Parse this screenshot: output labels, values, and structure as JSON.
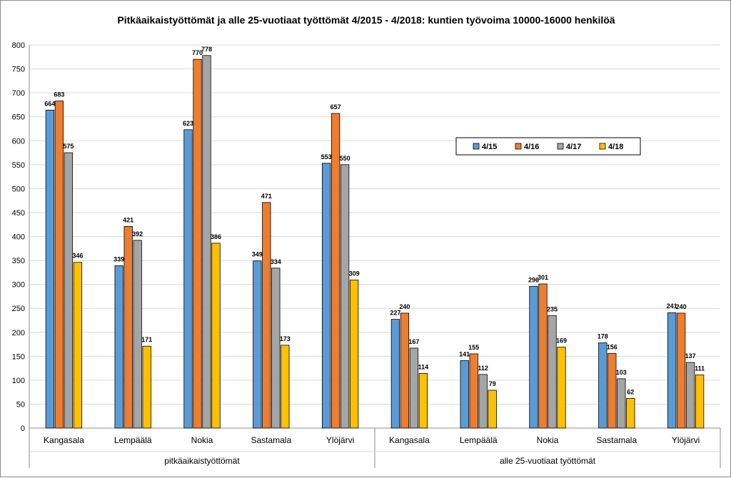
{
  "chart_data": {
    "type": "bar",
    "title": "Pitkäaikaistyöttömät ja alle 25-vuotiaat työttömät 4/2015 - 4/2018: kuntien työvoima 10000-16000 henkilöä",
    "ylim": [
      0,
      800
    ],
    "yticks": [
      0,
      50,
      100,
      150,
      200,
      250,
      300,
      350,
      400,
      450,
      500,
      550,
      600,
      650,
      700,
      750,
      800
    ],
    "grid": true,
    "legend_position": "right",
    "groups": [
      {
        "label": "pitkäaikaistyöttömät",
        "categories": [
          "Kangasala",
          "Lempäälä",
          "Nokia",
          "Sastamala",
          "Ylöjärvi"
        ]
      },
      {
        "label": "alle 25-vuotiaat työttömät",
        "categories": [
          "Kangasala",
          "Lempäälä",
          "Nokia",
          "Sastamala",
          "Ylöjärvi"
        ]
      }
    ],
    "series": [
      {
        "name": "4/15",
        "color": "#5b9bd5",
        "values": [
          664,
          339,
          623,
          349,
          553,
          227,
          141,
          296,
          178,
          241
        ]
      },
      {
        "name": "4/16",
        "color": "#ed7d31",
        "values": [
          683,
          421,
          770,
          471,
          657,
          240,
          155,
          301,
          156,
          240
        ]
      },
      {
        "name": "4/17",
        "color": "#a5a5a5",
        "values": [
          575,
          392,
          778,
          334,
          550,
          167,
          112,
          235,
          103,
          137
        ]
      },
      {
        "name": "4/18",
        "color": "#ffc000",
        "values": [
          346,
          171,
          386,
          173,
          309,
          114,
          79,
          169,
          62,
          111
        ]
      }
    ]
  }
}
